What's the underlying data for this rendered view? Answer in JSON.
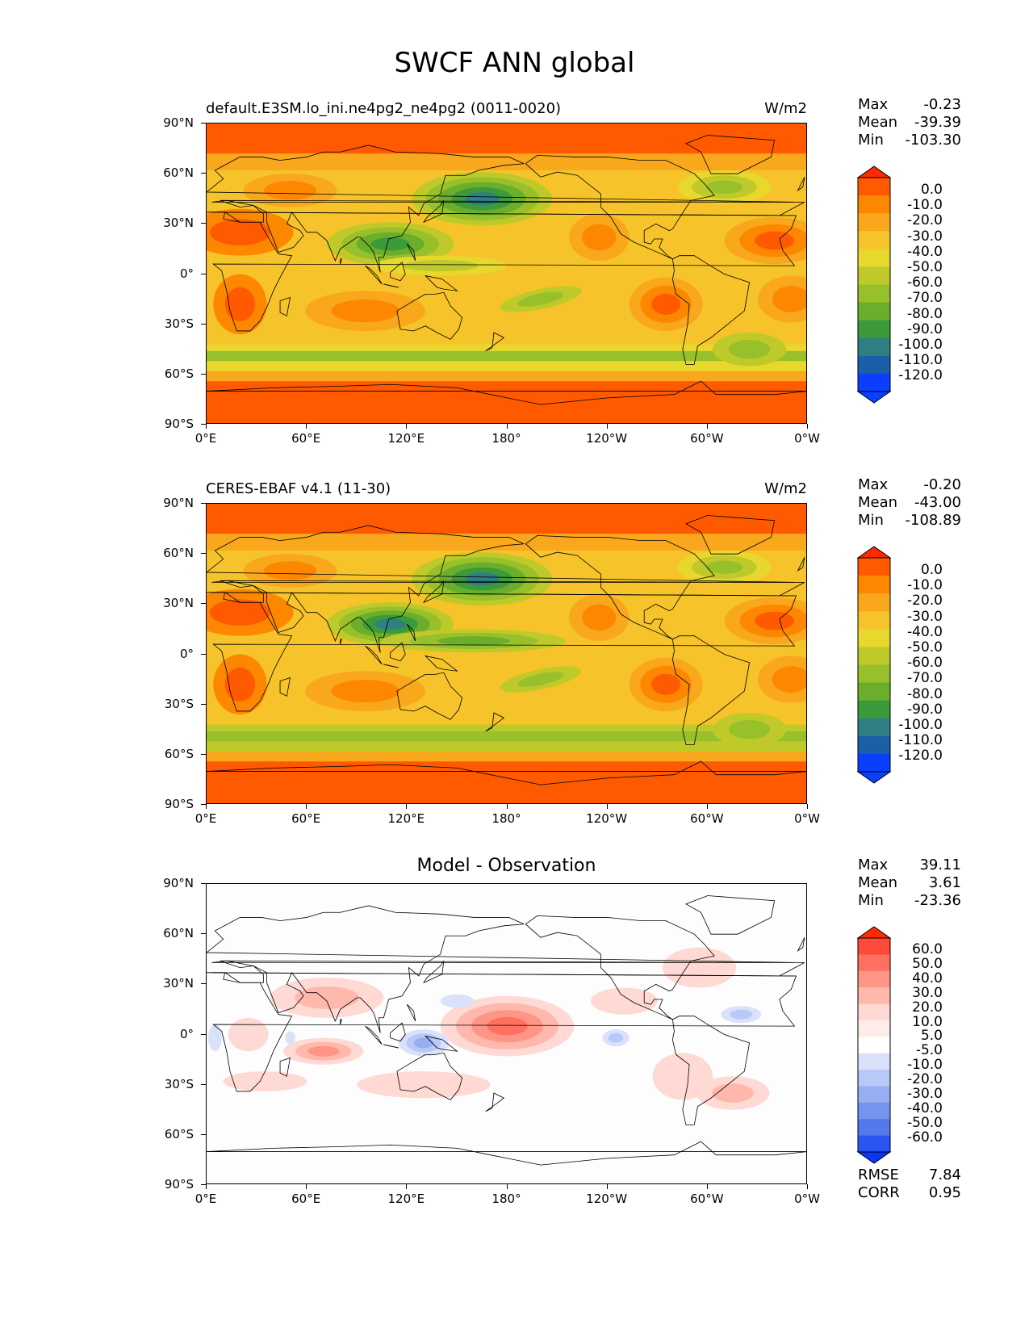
{
  "figure": {
    "title": "SWCF ANN global"
  },
  "panels": [
    {
      "left_title": "default.E3SM.lo_ini.ne4pg2_ne4pg2 (0011-0020)",
      "right_title": "W/m2",
      "center_title": "",
      "stats": {
        "max_label": "Max",
        "max": "-0.23",
        "mean_label": "Mean",
        "mean": "-39.39",
        "min_label": "Min",
        "min": "-103.30"
      },
      "colorbar": [
        "0.0",
        "-10.0",
        "-20.0",
        "-30.0",
        "-40.0",
        "-50.0",
        "-60.0",
        "-70.0",
        "-80.0",
        "-90.0",
        "-100.0",
        "-110.0",
        "-120.0"
      ]
    },
    {
      "left_title": "CERES-EBAF v4.1 (11-30)",
      "right_title": "W/m2",
      "center_title": "",
      "stats": {
        "max_label": "Max",
        "max": "-0.20",
        "mean_label": "Mean",
        "mean": "-43.00",
        "min_label": "Min",
        "min": "-108.89"
      },
      "colorbar": [
        "0.0",
        "-10.0",
        "-20.0",
        "-30.0",
        "-40.0",
        "-50.0",
        "-60.0",
        "-70.0",
        "-80.0",
        "-90.0",
        "-100.0",
        "-110.0",
        "-120.0"
      ]
    },
    {
      "left_title": "",
      "right_title": "",
      "center_title": "Model - Observation",
      "stats": {
        "max_label": "Max",
        "max": "39.11",
        "mean_label": "Mean",
        "mean": "3.61",
        "min_label": "Min",
        "min": "-23.36"
      },
      "colorbar": [
        "60.0",
        "50.0",
        "40.0",
        "30.0",
        "20.0",
        "10.0",
        "5.0",
        "-5.0",
        "-10.0",
        "-20.0",
        "-30.0",
        "-40.0",
        "-50.0",
        "-60.0"
      ],
      "metrics": {
        "rmse_label": "RMSE",
        "rmse": "7.84",
        "corr_label": "CORR",
        "corr": "0.95"
      }
    }
  ],
  "axes": {
    "lat_ticks": [
      "90°N",
      "60°N",
      "30°N",
      "0°",
      "30°S",
      "60°S",
      "90°S"
    ],
    "lon_ticks": [
      "0°E",
      "60°E",
      "120°E",
      "180°",
      "120°W",
      "60°W",
      "0°W"
    ]
  },
  "colors": {
    "abs_scale": [
      "#ff2a00",
      "#ff5a00",
      "#fd8800",
      "#f9a71c",
      "#f6c42a",
      "#e8d82d",
      "#bfca2a",
      "#98c02a",
      "#6aae2b",
      "#3b9a3a",
      "#2f8082",
      "#1a5fa8",
      "#0a3fff"
    ],
    "diff_pos": [
      "#ff2a00",
      "#ff4a3a",
      "#ff7060",
      "#ff9585",
      "#ffb8ab",
      "#ffd9d3"
    ],
    "diff_neg": [
      "#d9e1fb",
      "#b8c8f7",
      "#97aef3",
      "#7594f0",
      "#5379ec",
      "#2a55f3",
      "#0a35ff"
    ],
    "ocean_abs": "#f6c42a",
    "diff_bg": "#fdfdfd"
  }
}
